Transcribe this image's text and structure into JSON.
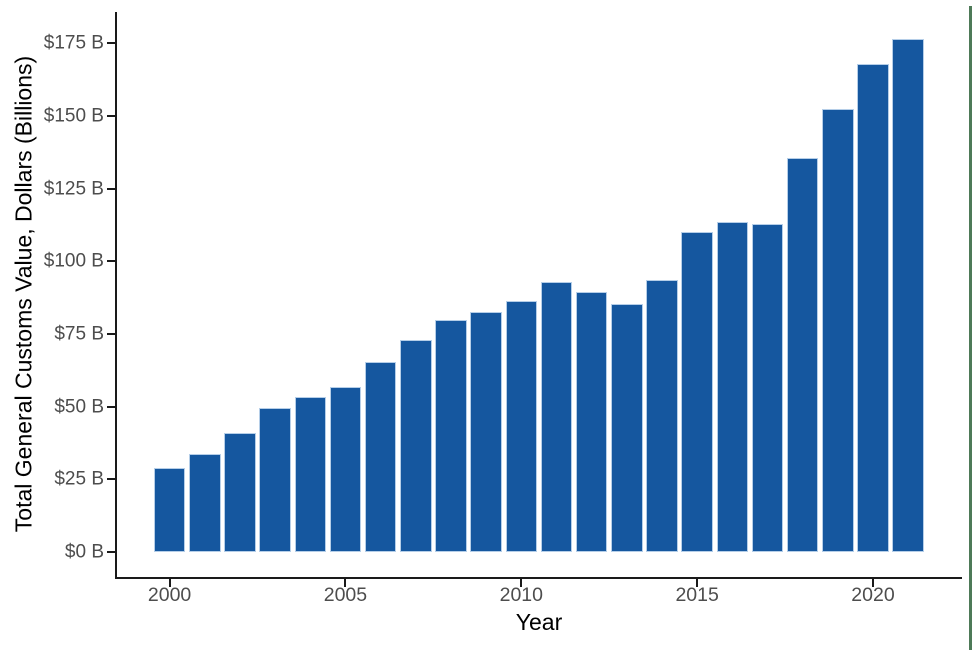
{
  "chart_data": {
    "type": "bar",
    "title": "",
    "xlabel": "Year",
    "ylabel": "Total General Customs Value, Dollars (Billions)",
    "x": [
      2000,
      2001,
      2002,
      2003,
      2004,
      2005,
      2006,
      2007,
      2008,
      2009,
      2010,
      2011,
      2012,
      2013,
      2014,
      2015,
      2016,
      2017,
      2018,
      2019,
      2020,
      2021
    ],
    "values": [
      29.0,
      33.7,
      41.0,
      49.5,
      53.3,
      56.7,
      65.3,
      72.9,
      80.0,
      82.5,
      86.5,
      93.0,
      89.5,
      85.5,
      93.6,
      110.0,
      113.6,
      112.9,
      135.7,
      152.3,
      168.1,
      176.6
    ],
    "y_tick_values": [
      0,
      25,
      50,
      75,
      100,
      125,
      150,
      175
    ],
    "y_tick_labels": [
      "$0 B",
      "$25 B",
      "$50 B",
      "$75 B",
      "$100 B",
      "$125 B",
      "$150 B",
      "$175 B"
    ],
    "x_tick_values": [
      2000,
      2005,
      2010,
      2015,
      2020
    ],
    "x_tick_labels": [
      "2000",
      "2005",
      "2010",
      "2015",
      "2020"
    ],
    "ylim": [
      0,
      186
    ],
    "grid": "off",
    "legend": "none",
    "colors": {
      "bar_fill": "#15579F",
      "bar_border": "#B5CEE8",
      "axis_line": "#1A1A1A",
      "tick_label": "#4D4D4D",
      "axis_title": "#000000",
      "right_edge_line": "#4E7A58"
    }
  }
}
